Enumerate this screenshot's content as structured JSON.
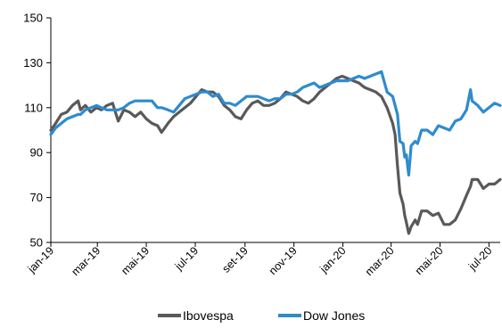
{
  "chart_data": {
    "type": "line",
    "title": "",
    "xlabel": "",
    "ylabel": "",
    "ylim": [
      50,
      150
    ],
    "yticks": [
      50,
      70,
      90,
      110,
      130,
      150
    ],
    "xlim": [
      "2019-01-02",
      "2020-07-15"
    ],
    "xticks": [
      {
        "date": "2019-01-01",
        "label": "jan-19"
      },
      {
        "date": "2019-03-01",
        "label": "mar-19"
      },
      {
        "date": "2019-05-01",
        "label": "mai-19"
      },
      {
        "date": "2019-07-01",
        "label": "jul-19"
      },
      {
        "date": "2019-09-01",
        "label": "set-19"
      },
      {
        "date": "2019-11-01",
        "label": "nov-19"
      },
      {
        "date": "2020-01-01",
        "label": "jan-20"
      },
      {
        "date": "2020-03-01",
        "label": "mar-20"
      },
      {
        "date": "2020-05-01",
        "label": "mai-20"
      },
      {
        "date": "2020-07-01",
        "label": "jul-20"
      }
    ],
    "grid": false,
    "legend_position": "bottom",
    "series": [
      {
        "name": "Ibovespa",
        "color": "#595959",
        "points": [
          [
            "2019-01-02",
            100
          ],
          [
            "2019-01-08",
            103
          ],
          [
            "2019-01-15",
            107
          ],
          [
            "2019-01-22",
            108
          ],
          [
            "2019-01-29",
            111
          ],
          [
            "2019-02-05",
            113
          ],
          [
            "2019-02-08",
            109
          ],
          [
            "2019-02-14",
            111
          ],
          [
            "2019-02-21",
            108
          ],
          [
            "2019-02-28",
            110
          ],
          [
            "2019-03-06",
            109
          ],
          [
            "2019-03-13",
            111
          ],
          [
            "2019-03-20",
            112
          ],
          [
            "2019-03-27",
            104
          ],
          [
            "2019-04-03",
            109
          ],
          [
            "2019-04-10",
            108
          ],
          [
            "2019-04-17",
            106
          ],
          [
            "2019-04-24",
            108
          ],
          [
            "2019-05-01",
            105
          ],
          [
            "2019-05-08",
            103
          ],
          [
            "2019-05-15",
            102
          ],
          [
            "2019-05-20",
            99
          ],
          [
            "2019-05-28",
            103
          ],
          [
            "2019-06-04",
            106
          ],
          [
            "2019-06-11",
            108
          ],
          [
            "2019-06-18",
            110
          ],
          [
            "2019-06-25",
            112
          ],
          [
            "2019-07-02",
            115
          ],
          [
            "2019-07-09",
            118
          ],
          [
            "2019-07-16",
            117
          ],
          [
            "2019-07-23",
            117
          ],
          [
            "2019-07-30",
            115
          ],
          [
            "2019-08-06",
            111
          ],
          [
            "2019-08-13",
            109
          ],
          [
            "2019-08-20",
            106
          ],
          [
            "2019-08-27",
            105
          ],
          [
            "2019-09-03",
            109
          ],
          [
            "2019-09-10",
            112
          ],
          [
            "2019-09-17",
            113
          ],
          [
            "2019-09-24",
            111
          ],
          [
            "2019-10-01",
            111
          ],
          [
            "2019-10-08",
            112
          ],
          [
            "2019-10-15",
            114
          ],
          [
            "2019-10-22",
            117
          ],
          [
            "2019-10-29",
            116
          ],
          [
            "2019-11-05",
            115
          ],
          [
            "2019-11-12",
            113
          ],
          [
            "2019-11-19",
            112
          ],
          [
            "2019-11-26",
            114
          ],
          [
            "2019-12-03",
            117
          ],
          [
            "2019-12-10",
            119
          ],
          [
            "2019-12-17",
            121
          ],
          [
            "2019-12-24",
            123
          ],
          [
            "2019-12-31",
            124
          ],
          [
            "2020-01-07",
            123
          ],
          [
            "2020-01-14",
            122
          ],
          [
            "2020-01-21",
            121
          ],
          [
            "2020-01-28",
            119
          ],
          [
            "2020-02-04",
            118
          ],
          [
            "2020-02-11",
            117
          ],
          [
            "2020-02-18",
            115
          ],
          [
            "2020-02-25",
            110
          ],
          [
            "2020-03-03",
            103
          ],
          [
            "2020-03-06",
            98
          ],
          [
            "2020-03-09",
            84
          ],
          [
            "2020-03-12",
            72
          ],
          [
            "2020-03-16",
            67
          ],
          [
            "2020-03-18",
            62
          ],
          [
            "2020-03-20",
            59
          ],
          [
            "2020-03-23",
            54
          ],
          [
            "2020-03-26",
            57
          ],
          [
            "2020-03-31",
            60
          ],
          [
            "2020-04-03",
            58
          ],
          [
            "2020-04-08",
            64
          ],
          [
            "2020-04-15",
            64
          ],
          [
            "2020-04-22",
            62
          ],
          [
            "2020-04-29",
            63
          ],
          [
            "2020-05-06",
            58
          ],
          [
            "2020-05-13",
            58
          ],
          [
            "2020-05-20",
            60
          ],
          [
            "2020-05-27",
            65
          ],
          [
            "2020-06-03",
            71
          ],
          [
            "2020-06-08",
            75
          ],
          [
            "2020-06-10",
            78
          ],
          [
            "2020-06-17",
            78
          ],
          [
            "2020-06-24",
            74
          ],
          [
            "2020-07-01",
            76
          ],
          [
            "2020-07-08",
            76
          ],
          [
            "2020-07-15",
            78
          ]
        ]
      },
      {
        "name": "Dow Jones",
        "color": "#2E8BCE",
        "points": [
          [
            "2019-01-02",
            98
          ],
          [
            "2019-01-08",
            101
          ],
          [
            "2019-01-15",
            103
          ],
          [
            "2019-01-22",
            105
          ],
          [
            "2019-01-29",
            106
          ],
          [
            "2019-02-05",
            107
          ],
          [
            "2019-02-08",
            107
          ],
          [
            "2019-02-14",
            109
          ],
          [
            "2019-02-21",
            110
          ],
          [
            "2019-02-28",
            111
          ],
          [
            "2019-03-06",
            110
          ],
          [
            "2019-03-13",
            109
          ],
          [
            "2019-03-20",
            109
          ],
          [
            "2019-03-27",
            109
          ],
          [
            "2019-04-03",
            110
          ],
          [
            "2019-04-10",
            112
          ],
          [
            "2019-04-17",
            113
          ],
          [
            "2019-04-24",
            113
          ],
          [
            "2019-05-01",
            113
          ],
          [
            "2019-05-08",
            113
          ],
          [
            "2019-05-15",
            110
          ],
          [
            "2019-05-20",
            110
          ],
          [
            "2019-05-28",
            109
          ],
          [
            "2019-06-04",
            108
          ],
          [
            "2019-06-11",
            111
          ],
          [
            "2019-06-18",
            114
          ],
          [
            "2019-06-25",
            115
          ],
          [
            "2019-07-02",
            116
          ],
          [
            "2019-07-09",
            117
          ],
          [
            "2019-07-16",
            117
          ],
          [
            "2019-07-23",
            115
          ],
          [
            "2019-07-30",
            116
          ],
          [
            "2019-08-06",
            112
          ],
          [
            "2019-08-13",
            112
          ],
          [
            "2019-08-20",
            111
          ],
          [
            "2019-08-27",
            113
          ],
          [
            "2019-09-03",
            115
          ],
          [
            "2019-09-10",
            115
          ],
          [
            "2019-09-17",
            115
          ],
          [
            "2019-09-24",
            114
          ],
          [
            "2019-10-01",
            113
          ],
          [
            "2019-10-08",
            114
          ],
          [
            "2019-10-15",
            114
          ],
          [
            "2019-10-22",
            116
          ],
          [
            "2019-10-29",
            116
          ],
          [
            "2019-11-05",
            117
          ],
          [
            "2019-11-12",
            119
          ],
          [
            "2019-11-19",
            120
          ],
          [
            "2019-11-26",
            121
          ],
          [
            "2019-12-03",
            119
          ],
          [
            "2019-12-10",
            120
          ],
          [
            "2019-12-17",
            121
          ],
          [
            "2019-12-24",
            122
          ],
          [
            "2019-12-31",
            122
          ],
          [
            "2020-01-07",
            122
          ],
          [
            "2020-01-14",
            123
          ],
          [
            "2020-01-21",
            124
          ],
          [
            "2020-01-28",
            123
          ],
          [
            "2020-02-04",
            124
          ],
          [
            "2020-02-11",
            125
          ],
          [
            "2020-02-18",
            126
          ],
          [
            "2020-02-25",
            117
          ],
          [
            "2020-03-03",
            115
          ],
          [
            "2020-03-06",
            111
          ],
          [
            "2020-03-09",
            107
          ],
          [
            "2020-03-12",
            95
          ],
          [
            "2020-03-16",
            94
          ],
          [
            "2020-03-18",
            88
          ],
          [
            "2020-03-20",
            89
          ],
          [
            "2020-03-23",
            80
          ],
          [
            "2020-03-26",
            93
          ],
          [
            "2020-03-31",
            95
          ],
          [
            "2020-04-03",
            94
          ],
          [
            "2020-04-08",
            100
          ],
          [
            "2020-04-15",
            100
          ],
          [
            "2020-04-22",
            98
          ],
          [
            "2020-04-29",
            102
          ],
          [
            "2020-05-06",
            101
          ],
          [
            "2020-05-13",
            100
          ],
          [
            "2020-05-20",
            104
          ],
          [
            "2020-05-27",
            105
          ],
          [
            "2020-06-03",
            109
          ],
          [
            "2020-06-08",
            118
          ],
          [
            "2020-06-10",
            113
          ],
          [
            "2020-06-17",
            111
          ],
          [
            "2020-06-24",
            108
          ],
          [
            "2020-07-01",
            110
          ],
          [
            "2020-07-08",
            112
          ],
          [
            "2020-07-15",
            111
          ]
        ]
      }
    ]
  }
}
